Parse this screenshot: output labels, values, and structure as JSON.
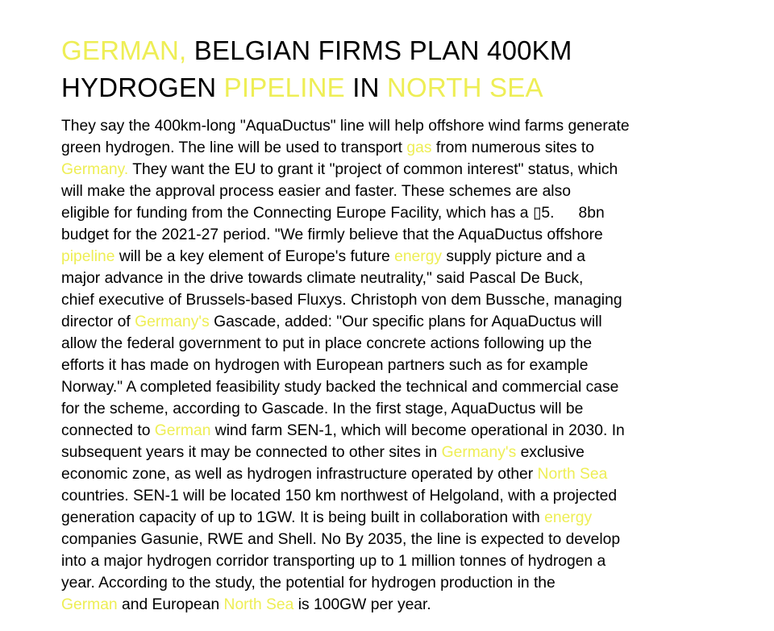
{
  "colors": {
    "background": "#ffffff",
    "text": "#000000",
    "highlight": "#eeee55"
  },
  "headline": {
    "line1": [
      {
        "text": "GERMAN,",
        "highlight": true
      },
      {
        "text": " BELGIAN FIRMS PLAN 400KM",
        "highlight": false
      }
    ],
    "line2": [
      {
        "text": "HYDROGEN ",
        "highlight": false
      },
      {
        "text": "PIPELINE",
        "highlight": true
      },
      {
        "text": " IN ",
        "highlight": false
      },
      {
        "text": "NORTH SEA",
        "highlight": true
      }
    ]
  },
  "body_lines": [
    [
      {
        "text": "They say the 400km-long \"AquaDuctus\" line will help offshore wind farms generate",
        "highlight": false
      }
    ],
    [
      {
        "text": "green hydrogen. The line will be used to transport ",
        "highlight": false
      },
      {
        "text": "gas",
        "highlight": true
      },
      {
        "text": " from numerous sites to",
        "highlight": false
      }
    ],
    [
      {
        "text": "Germany.",
        "highlight": true
      },
      {
        "text": " They want the EU to grant it \"project of common interest\" status, which",
        "highlight": false
      }
    ],
    [
      {
        "text": "will make the approval process easier and faster. These schemes are also",
        "highlight": false
      }
    ],
    [
      {
        "text": "eligible for funding from the Connecting Europe Facility, which has a ▯5.",
        "highlight": false
      },
      {
        "gap": true
      },
      {
        "text": "8bn",
        "highlight": false
      }
    ],
    [
      {
        "text": "budget for the 2021-27 period. \"We firmly believe that the AquaDuctus offshore",
        "highlight": false
      }
    ],
    [
      {
        "text": "pipeline",
        "highlight": true
      },
      {
        "text": " will be a key element of Europe's future ",
        "highlight": false
      },
      {
        "text": "energy",
        "highlight": true
      },
      {
        "text": " supply picture and a",
        "highlight": false
      }
    ],
    [
      {
        "text": "major advance in the drive towards climate neutrality,\" said Pascal De Buck,",
        "highlight": false
      }
    ],
    [
      {
        "text": "chief executive of Brussels-based Fluxys. Christoph von dem Bussche, managing",
        "highlight": false
      }
    ],
    [
      {
        "text": "director of ",
        "highlight": false
      },
      {
        "text": "Germany's",
        "highlight": true
      },
      {
        "text": " Gascade, added: \"Our specific plans for AquaDuctus will",
        "highlight": false
      }
    ],
    [
      {
        "text": "allow the federal government to put in place concrete actions following up the",
        "highlight": false
      }
    ],
    [
      {
        "text": "efforts it has made on hydrogen with European partners such as for example",
        "highlight": false
      }
    ],
    [
      {
        "text": "Norway.\" A completed feasibility study backed the technical and commercial case",
        "highlight": false
      }
    ],
    [
      {
        "text": "for the scheme, according to Gascade. In the first stage, AquaDuctus will be",
        "highlight": false
      }
    ],
    [
      {
        "text": "connected to ",
        "highlight": false
      },
      {
        "text": "German",
        "highlight": true
      },
      {
        "text": " wind farm SEN-1, which will become operational in 2030. In",
        "highlight": false
      }
    ],
    [
      {
        "text": "subsequent years it may be connected to other sites in ",
        "highlight": false
      },
      {
        "text": "Germany's",
        "highlight": true
      },
      {
        "text": " exclusive",
        "highlight": false
      }
    ],
    [
      {
        "text": "economic zone, as well as hydrogen infrastructure operated by other ",
        "highlight": false
      },
      {
        "text": "North Sea",
        "highlight": true
      }
    ],
    [
      {
        "text": "countries. SEN-1 will be located 150 km northwest of Helgoland, with a projected",
        "highlight": false
      }
    ],
    [
      {
        "text": "generation capacity of up to 1GW. It is being built in collaboration with ",
        "highlight": false
      },
      {
        "text": "energy",
        "highlight": true
      }
    ],
    [
      {
        "text": "companies Gasunie, RWE and Shell. No By 2035, the line is expected to develop",
        "highlight": false
      }
    ],
    [
      {
        "text": "into a major hydrogen corridor transporting up to 1 million tonnes of hydrogen a",
        "highlight": false
      }
    ],
    [
      {
        "text": "year. According to the study, the potential for hydrogen production in the",
        "highlight": false
      }
    ],
    [
      {
        "text": "German",
        "highlight": true
      },
      {
        "text": " and European ",
        "highlight": false
      },
      {
        "text": "North Sea",
        "highlight": true
      },
      {
        "text": " is 100GW per year.",
        "highlight": false
      }
    ]
  ]
}
